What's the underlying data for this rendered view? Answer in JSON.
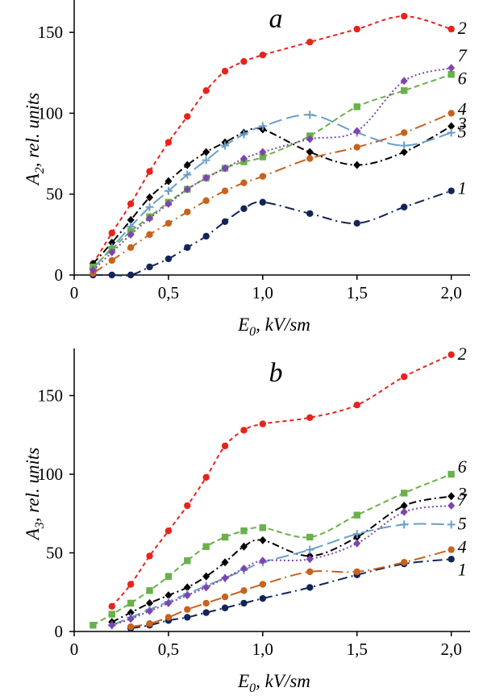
{
  "chart_data": [
    {
      "type": "line",
      "panel_label": "a",
      "xlabel": "E0, kV/sm",
      "xlabel_main": "E",
      "xlabel_sub": "0",
      "xlabel_rest": ", kV/sm",
      "ylabel": "A2, rel. units",
      "ylabel_main": "A",
      "ylabel_sub": "2",
      "ylabel_rest": ", rel. units",
      "xlim": [
        0,
        2.1
      ],
      "ylim": [
        0,
        170
      ],
      "xticks": [
        0,
        0.5,
        1.0,
        1.5,
        2.0
      ],
      "xtick_labels": [
        "0",
        "0,5",
        "1,0",
        "1,5",
        "2,0"
      ],
      "yticks": [
        0,
        50,
        100,
        150
      ],
      "ytick_labels": [
        "0",
        "50",
        "100",
        "150"
      ],
      "grid": false,
      "series": [
        {
          "name": "1",
          "color": "#13245a",
          "dash": "12,5,2,5",
          "marker": "circle",
          "x": [
            0.1,
            0.2,
            0.3,
            0.4,
            0.5,
            0.6,
            0.7,
            0.8,
            0.9,
            1.0,
            1.25,
            1.5,
            1.75,
            2.0
          ],
          "y": [
            0,
            0,
            0,
            5,
            10,
            17,
            24,
            33,
            41,
            45,
            38,
            32,
            42,
            52
          ]
        },
        {
          "name": "2",
          "color": "#e8231c",
          "dash": "5,4",
          "marker": "circle",
          "x": [
            0.1,
            0.2,
            0.3,
            0.4,
            0.5,
            0.6,
            0.7,
            0.8,
            0.9,
            1.0,
            1.25,
            1.5,
            1.75,
            2.0
          ],
          "y": [
            7,
            26,
            44,
            64,
            82,
            98,
            114,
            126,
            132,
            136,
            144,
            152,
            160,
            152
          ]
        },
        {
          "name": "3",
          "color": "#000000",
          "dash": "9,4,2,4",
          "marker": "diamond",
          "x": [
            0.1,
            0.2,
            0.3,
            0.4,
            0.5,
            0.6,
            0.7,
            0.8,
            0.9,
            1.0,
            1.25,
            1.5,
            1.75,
            2.0
          ],
          "y": [
            7,
            20,
            34,
            48,
            58,
            68,
            76,
            82,
            88,
            90,
            76,
            68,
            76,
            92
          ]
        },
        {
          "name": "4",
          "color": "#c8621e",
          "dash": "14,5,2,5",
          "marker": "circle",
          "x": [
            0.1,
            0.2,
            0.3,
            0.4,
            0.5,
            0.6,
            0.7,
            0.8,
            0.9,
            1.0,
            1.25,
            1.5,
            1.75,
            2.0
          ],
          "y": [
            1,
            9,
            17,
            25,
            32,
            39,
            46,
            52,
            57,
            61,
            72,
            79,
            88,
            100
          ]
        },
        {
          "name": "5",
          "color": "#6a9ec8",
          "dash": "16,6",
          "marker": "plus",
          "x": [
            0.1,
            0.2,
            0.3,
            0.4,
            0.5,
            0.6,
            0.7,
            0.8,
            0.9,
            1.0,
            1.25,
            1.5,
            1.75,
            2.0
          ],
          "y": [
            4,
            17,
            30,
            42,
            52,
            62,
            71,
            80,
            87,
            92,
            99,
            88,
            80,
            88
          ]
        },
        {
          "name": "6",
          "color": "#6ab04c",
          "dash": "7,4",
          "marker": "square",
          "x": [
            0.1,
            0.2,
            0.3,
            0.4,
            0.5,
            0.6,
            0.7,
            0.8,
            0.9,
            1.0,
            1.25,
            1.5,
            1.75,
            2.0
          ],
          "y": [
            5,
            16,
            27,
            36,
            45,
            53,
            60,
            66,
            70,
            73,
            86,
            104,
            114,
            124
          ]
        },
        {
          "name": "7",
          "color": "#7d45b0",
          "dash": "2,3",
          "marker": "diamond",
          "x": [
            0.1,
            0.2,
            0.3,
            0.4,
            0.5,
            0.6,
            0.7,
            0.8,
            0.9,
            1.0,
            1.25,
            1.5,
            1.75,
            2.0
          ],
          "y": [
            3,
            14,
            25,
            35,
            44,
            53,
            60,
            66,
            72,
            76,
            84,
            89,
            120,
            128
          ]
        }
      ]
    },
    {
      "type": "line",
      "panel_label": "b",
      "xlabel": "E0, kV/sm",
      "xlabel_main": "E",
      "xlabel_sub": "0",
      "xlabel_rest": ", kV/sm",
      "ylabel": "A3, rel. units",
      "ylabel_main": "A",
      "ylabel_sub": "3",
      "ylabel_rest": ", rel. units",
      "xlim": [
        0,
        2.1
      ],
      "ylim": [
        0,
        180
      ],
      "xticks": [
        0,
        0.5,
        1.0,
        1.5,
        2.0
      ],
      "xtick_labels": [
        "0",
        "0,5",
        "1,0",
        "1,5",
        "2,0"
      ],
      "yticks": [
        0,
        50,
        100,
        150
      ],
      "ytick_labels": [
        "0",
        "50",
        "100",
        "150"
      ],
      "grid": false,
      "series": [
        {
          "name": "1",
          "color": "#13245a",
          "dash": "12,5,2,5",
          "marker": "circle",
          "x": [
            0.3,
            0.4,
            0.5,
            0.6,
            0.7,
            0.8,
            0.9,
            1.0,
            1.25,
            1.5,
            1.75,
            2.0
          ],
          "y": [
            2,
            4,
            7,
            9,
            12,
            15,
            18,
            21,
            28,
            36,
            43,
            46
          ]
        },
        {
          "name": "2",
          "color": "#e8231c",
          "dash": "5,4",
          "marker": "circle",
          "x": [
            0.2,
            0.3,
            0.4,
            0.5,
            0.6,
            0.7,
            0.8,
            0.9,
            1.0,
            1.25,
            1.5,
            1.75,
            2.0
          ],
          "y": [
            16,
            30,
            48,
            64,
            80,
            98,
            118,
            128,
            132,
            136,
            144,
            162,
            176
          ]
        },
        {
          "name": "3",
          "color": "#000000",
          "dash": "9,4,2,4",
          "marker": "diamond",
          "x": [
            0.2,
            0.3,
            0.4,
            0.5,
            0.6,
            0.7,
            0.8,
            0.9,
            1.0,
            1.25,
            1.5,
            1.75,
            2.0
          ],
          "y": [
            6,
            12,
            18,
            23,
            28,
            35,
            44,
            54,
            58,
            48,
            60,
            80,
            86
          ]
        },
        {
          "name": "4",
          "color": "#c8621e",
          "dash": "14,5,2,5",
          "marker": "circle",
          "x": [
            0.3,
            0.4,
            0.5,
            0.6,
            0.7,
            0.8,
            0.9,
            1.0,
            1.25,
            1.5,
            1.75,
            2.0
          ],
          "y": [
            3,
            5,
            9,
            14,
            18,
            22,
            26,
            30,
            38,
            38,
            44,
            52
          ]
        },
        {
          "name": "5",
          "color": "#6a9ec8",
          "dash": "16,6",
          "marker": "plus",
          "x": [
            0.2,
            0.3,
            0.4,
            0.5,
            0.6,
            0.7,
            0.8,
            0.9,
            1.0,
            1.25,
            1.5,
            1.75,
            2.0
          ],
          "y": [
            4,
            9,
            14,
            19,
            24,
            29,
            34,
            39,
            44,
            52,
            62,
            68,
            68
          ]
        },
        {
          "name": "6",
          "color": "#6ab04c",
          "dash": "7,4",
          "marker": "square",
          "x": [
            0.1,
            0.2,
            0.3,
            0.4,
            0.5,
            0.6,
            0.7,
            0.8,
            0.9,
            1.0,
            1.25,
            1.5,
            1.75,
            2.0
          ],
          "y": [
            4,
            11,
            18,
            26,
            35,
            45,
            54,
            60,
            64,
            66,
            60,
            74,
            88,
            100
          ]
        },
        {
          "name": "7",
          "color": "#7d45b0",
          "dash": "2,3",
          "marker": "diamond",
          "x": [
            0.2,
            0.3,
            0.4,
            0.5,
            0.6,
            0.7,
            0.8,
            0.9,
            1.0,
            1.25,
            1.5,
            1.75,
            2.0
          ],
          "y": [
            4,
            8,
            13,
            18,
            23,
            28,
            34,
            40,
            45,
            46,
            56,
            76,
            80
          ]
        }
      ]
    }
  ]
}
